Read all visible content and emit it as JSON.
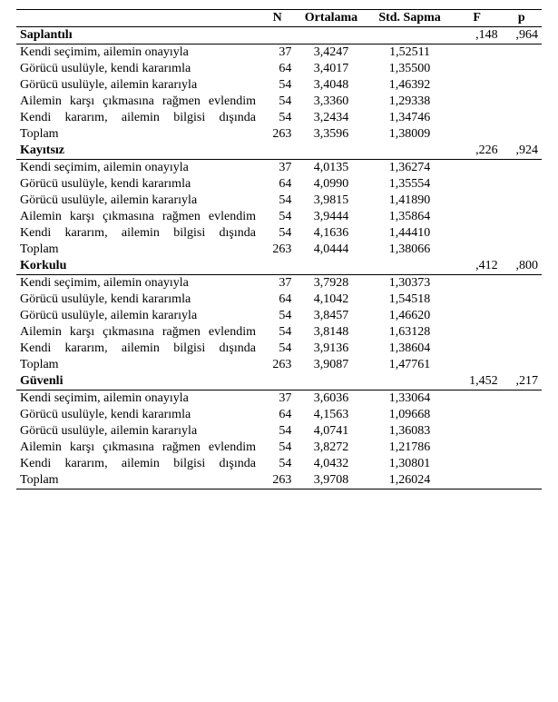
{
  "headers": {
    "blank": "",
    "n": "N",
    "mean": "Ortalama",
    "sd": "Std. Sapma",
    "f": "F",
    "p": "p"
  },
  "sections": [
    {
      "title": "Saplantılı",
      "f": ",148",
      "p": ",964",
      "rows": [
        {
          "label": "Kendi seçimim, ailemin onayıyla",
          "just": false,
          "n": "37",
          "mean": "3,4247",
          "sd": "1,52511"
        },
        {
          "label": "Görücü usulüyle, kendi kararımla",
          "just": false,
          "n": "64",
          "mean": "3,4017",
          "sd": "1,35500"
        },
        {
          "label": "Görücü usulüyle, ailemin kararıyla",
          "just": false,
          "n": "54",
          "mean": "3,4048",
          "sd": "1,46392"
        },
        {
          "label": "Ailemin karşı çıkmasına rağmen evlendim",
          "just": true,
          "n": "54",
          "mean": "3,3360",
          "sd": "1,29338"
        },
        {
          "label": "Kendi kararım, ailemin bilgisi dışında",
          "just": true,
          "n": "54",
          "mean": "3,2434",
          "sd": "1,34746"
        },
        {
          "label": "Toplam",
          "just": false,
          "n": "263",
          "mean": "3,3596",
          "sd": "1,38009"
        }
      ]
    },
    {
      "title": "Kayıtsız",
      "f": ",226",
      "p": ",924",
      "rows": [
        {
          "label": "Kendi seçimim, ailemin onayıyla",
          "just": false,
          "n": "37",
          "mean": "4,0135",
          "sd": "1,36274"
        },
        {
          "label": "Görücü usulüyle, kendi kararımla",
          "just": false,
          "n": "64",
          "mean": "4,0990",
          "sd": "1,35554"
        },
        {
          "label": "Görücü usulüyle, ailemin kararıyla",
          "just": false,
          "n": "54",
          "mean": "3,9815",
          "sd": "1,41890"
        },
        {
          "label": "Ailemin karşı çıkmasına rağmen evlendim",
          "just": true,
          "n": "54",
          "mean": "3,9444",
          "sd": "1,35864"
        },
        {
          "label": "Kendi kararım, ailemin bilgisi dışında",
          "just": true,
          "n": "54",
          "mean": "4,1636",
          "sd": "1,44410"
        },
        {
          "label": "Toplam",
          "just": false,
          "n": "263",
          "mean": "4,0444",
          "sd": "1,38066"
        }
      ]
    },
    {
      "title": "Korkulu",
      "f": ",412",
      "p": ",800",
      "rows": [
        {
          "label": "Kendi seçimim, ailemin onayıyla",
          "just": false,
          "n": "37",
          "mean": "3,7928",
          "sd": "1,30373"
        },
        {
          "label": "Görücü usulüyle, kendi kararımla",
          "just": false,
          "n": "64",
          "mean": "4,1042",
          "sd": "1,54518"
        },
        {
          "label": "Görücü usulüyle, ailemin kararıyla",
          "just": false,
          "n": "54",
          "mean": "3,8457",
          "sd": "1,46620"
        },
        {
          "label": "Ailemin karşı çıkmasına rağmen evlendim",
          "just": true,
          "n": "54",
          "mean": "3,8148",
          "sd": "1,63128"
        },
        {
          "label": "Kendi kararım, ailemin bilgisi dışında",
          "just": true,
          "n": "54",
          "mean": "3,9136",
          "sd": "1,38604"
        },
        {
          "label": "Toplam",
          "just": false,
          "n": "263",
          "mean": "3,9087",
          "sd": "1,47761"
        }
      ]
    },
    {
      "title": "Güvenli",
      "f": "1,452",
      "p": ",217",
      "rows": [
        {
          "label": "Kendi seçimim, ailemin onayıyla",
          "just": false,
          "n": "37",
          "mean": "3,6036",
          "sd": "1,33064"
        },
        {
          "label": "Görücü usulüyle, kendi kararımla",
          "just": false,
          "n": "64",
          "mean": "4,1563",
          "sd": "1,09668"
        },
        {
          "label": "Görücü usulüyle, ailemin kararıyla",
          "just": false,
          "n": "54",
          "mean": "4,0741",
          "sd": "1,36083"
        },
        {
          "label": "Ailemin karşı çıkmasına rağmen evlendim",
          "just": true,
          "n": "54",
          "mean": "3,8272",
          "sd": "1,21786"
        },
        {
          "label": "Kendi kararım, ailemin bilgisi dışında",
          "just": true,
          "n": "54",
          "mean": "4,0432",
          "sd": "1,30801"
        },
        {
          "label": "Toplam",
          "just": false,
          "n": "263",
          "mean": "3,9708",
          "sd": "1,26024"
        }
      ]
    }
  ]
}
